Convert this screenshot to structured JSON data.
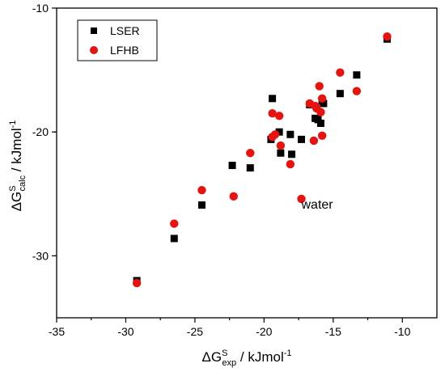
{
  "chart_data": {
    "type": "scatter",
    "xlabel": {
      "main": "ΔG",
      "sup": "S",
      "sub": "exp",
      "unit": " / kJmol",
      "unit_sup": "-1"
    },
    "ylabel": {
      "main": "ΔG",
      "sup": "S",
      "sub": "calc",
      "unit": " / kJmol",
      "unit_sup": "-1"
    },
    "xlim": [
      -35,
      -7.5
    ],
    "ylim": [
      -35,
      -10
    ],
    "xticks": [
      -35,
      -30,
      -25,
      -20,
      -15,
      -10
    ],
    "yticks": [
      -30,
      -20,
      -10
    ],
    "xtick_labels": [
      "-35",
      "-30",
      "-25",
      "-20",
      "-15",
      "-10"
    ],
    "ytick_labels": [
      "-30",
      "-20",
      "-10"
    ],
    "grid": false,
    "legend_position": "top-left",
    "series": [
      {
        "name": "LSER",
        "marker": "square",
        "color": "#000000",
        "points": [
          [
            -29.2,
            -32.0
          ],
          [
            -26.5,
            -28.6
          ],
          [
            -24.5,
            -25.9
          ],
          [
            -22.3,
            -22.7
          ],
          [
            -21.0,
            -22.9
          ],
          [
            -19.4,
            -17.3
          ],
          [
            -19.5,
            -20.6
          ],
          [
            -18.9,
            -20.0
          ],
          [
            -18.8,
            -21.7
          ],
          [
            -18.1,
            -20.2
          ],
          [
            -18.0,
            -21.8
          ],
          [
            -17.3,
            -20.6
          ],
          [
            -16.7,
            -17.8
          ],
          [
            -16.3,
            -18.9
          ],
          [
            -16.1,
            -19.0
          ],
          [
            -15.9,
            -19.3
          ],
          [
            -15.8,
            -17.5
          ],
          [
            -15.7,
            -17.7
          ],
          [
            -14.5,
            -16.9
          ],
          [
            -13.3,
            -15.4
          ],
          [
            -11.1,
            -12.5
          ]
        ]
      },
      {
        "name": "LFHB",
        "marker": "circle",
        "color": "#e8130f",
        "points": [
          [
            -29.2,
            -32.2
          ],
          [
            -26.5,
            -27.4
          ],
          [
            -24.5,
            -24.7
          ],
          [
            -22.2,
            -25.2
          ],
          [
            -21.0,
            -21.7
          ],
          [
            -19.4,
            -18.5
          ],
          [
            -19.4,
            -20.4
          ],
          [
            -19.2,
            -20.2
          ],
          [
            -18.9,
            -18.7
          ],
          [
            -18.8,
            -21.1
          ],
          [
            -18.1,
            -22.6
          ],
          [
            -17.3,
            -25.4
          ],
          [
            -16.7,
            -17.7
          ],
          [
            -16.4,
            -20.7
          ],
          [
            -16.3,
            -17.9
          ],
          [
            -16.2,
            -18.1
          ],
          [
            -16.0,
            -16.3
          ],
          [
            -15.9,
            -18.4
          ],
          [
            -15.8,
            -17.3
          ],
          [
            -15.8,
            -20.3
          ],
          [
            -14.5,
            -15.2
          ],
          [
            -13.3,
            -16.7
          ],
          [
            -11.1,
            -12.3
          ]
        ]
      }
    ],
    "annotations": [
      {
        "text": "water",
        "x": -17.3,
        "y": -25.8
      }
    ]
  }
}
